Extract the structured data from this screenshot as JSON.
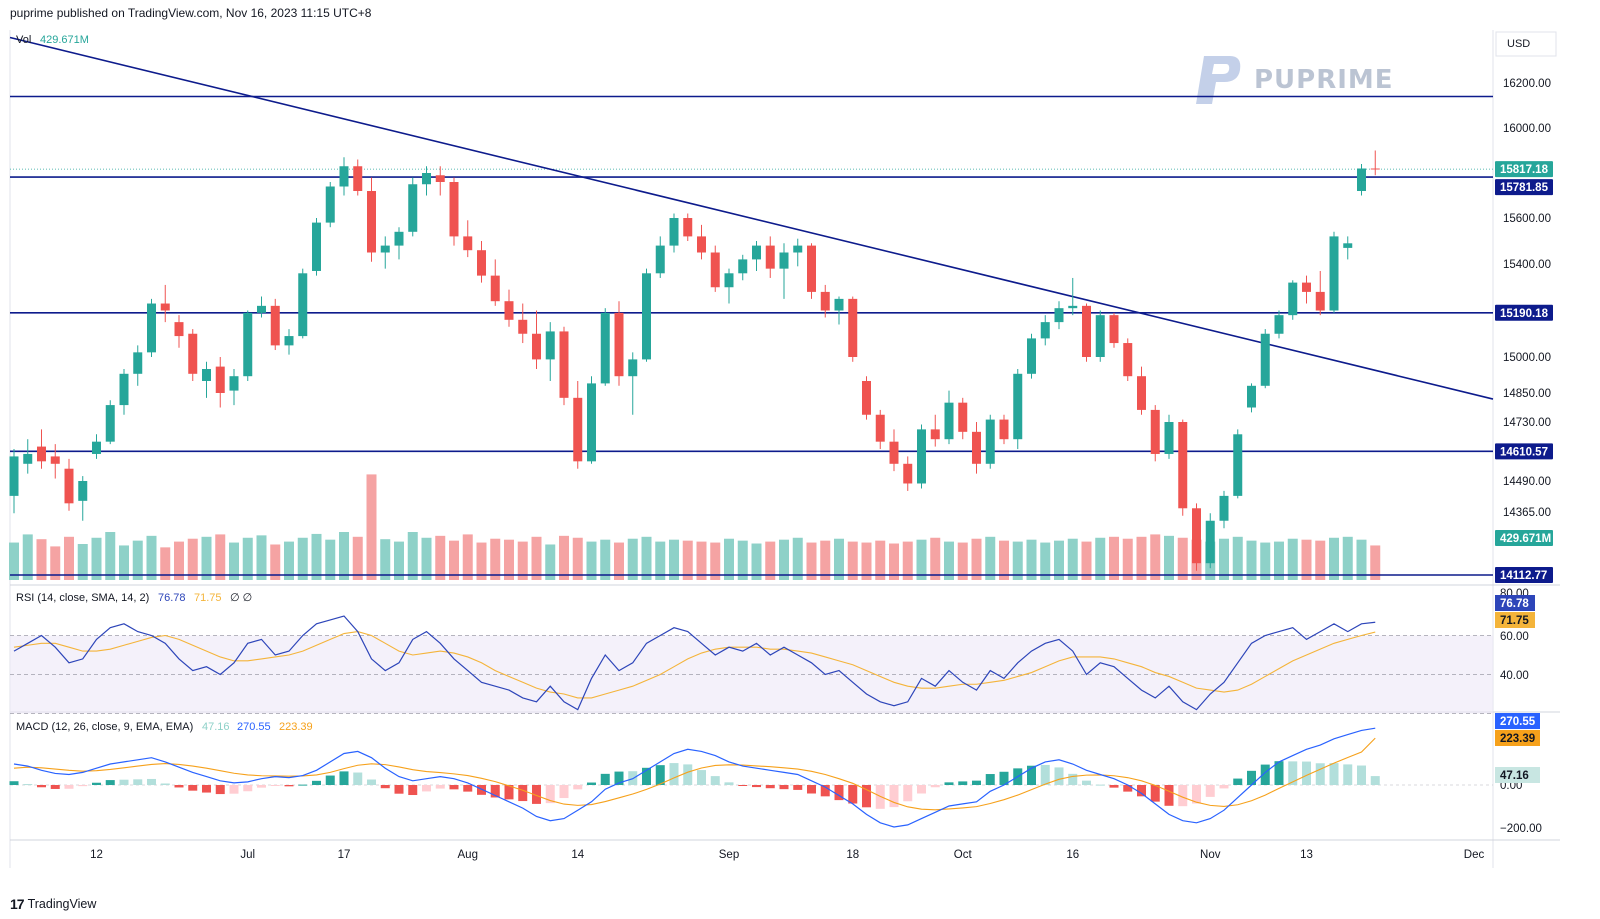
{
  "header": {
    "published": "puprime published on TradingView.com, Nov 16, 2023 11:15 UTC+8"
  },
  "currency": "USD",
  "watermark": {
    "text": "PUPRIME"
  },
  "footer": {
    "brand": "TradingView",
    "logo_glyph": "17"
  },
  "colors": {
    "up": "#26a69a",
    "down": "#ef5350",
    "vol_up": "#8ed1c8",
    "vol_down": "#f5a3a3",
    "line": "#0d1b8c",
    "rsi": "#2d45b9",
    "rsi_ma": "#f4b43a",
    "macd": "#2962ff",
    "signal": "#f6a11b",
    "hist_up": "#26a69a",
    "hist_down": "#ef5350"
  },
  "price_panel": {
    "vol_legend": {
      "label": "Vol",
      "value": "429.671M"
    },
    "y_ticks": [
      "16200.00",
      "16000.00",
      "15600.00",
      "15400.00",
      "15000.00",
      "14850.00",
      "14730.00",
      "14490.00",
      "14365.00"
    ],
    "y_tick_values": [
      16200,
      16000,
      15600,
      15400,
      15000,
      14850,
      14730,
      14490,
      14365
    ],
    "badges": [
      {
        "text": "15817.18",
        "value": 15817.18,
        "kind": "last"
      },
      {
        "text": "15781.85",
        "value": 15781.85,
        "kind": "level"
      },
      {
        "text": "15190.18",
        "value": 15190.18,
        "kind": "level"
      },
      {
        "text": "14610.57",
        "value": 14610.57,
        "kind": "level"
      },
      {
        "text": "14112.77",
        "value": 14112.77,
        "kind": "level"
      },
      {
        "text": "429.671M",
        "value": null,
        "kind": "volume"
      }
    ],
    "horizontal_levels": [
      16140,
      15781.85,
      15190.18,
      14610.57,
      14112.77
    ],
    "trendline": {
      "from": {
        "bar": 0,
        "price": 16180
      },
      "to": {
        "bar": 104,
        "price": 14825
      }
    }
  },
  "rsi_panel": {
    "legend": {
      "label": "RSI (14, close, SMA, 14, 2)",
      "rsi": "76.78",
      "ma": "71.75",
      "extra": "∅ ∅"
    },
    "y_ticks": [
      "80.00",
      "60.00",
      "40.00"
    ],
    "badges": [
      {
        "text": "76.78",
        "kind": "rsi"
      },
      {
        "text": "71.75",
        "kind": "ma"
      }
    ]
  },
  "macd_panel": {
    "legend": {
      "label": "MACD (12, 26, close, 9, EMA, EMA)",
      "hist": "47.16",
      "macd": "270.55",
      "signal": "223.39"
    },
    "y_ticks": [
      "0.00",
      "−200.00"
    ],
    "badges": [
      {
        "text": "270.55",
        "kind": "macd"
      },
      {
        "text": "223.39",
        "kind": "signal"
      },
      {
        "text": "47.16",
        "kind": "hist"
      }
    ]
  },
  "x_axis": {
    "labels": [
      {
        "text": "12",
        "bar": 6
      },
      {
        "text": "Jul",
        "bar": 17
      },
      {
        "text": "17",
        "bar": 24
      },
      {
        "text": "Aug",
        "bar": 33
      },
      {
        "text": "14",
        "bar": 41
      },
      {
        "text": "Sep",
        "bar": 52
      },
      {
        "text": "18",
        "bar": 61
      },
      {
        "text": "Oct",
        "bar": 69
      },
      {
        "text": "16",
        "bar": 77
      },
      {
        "text": "Nov",
        "bar": 87
      },
      {
        "text": "13",
        "bar": 94
      },
      {
        "text": "Dec",
        "bar": 104
      }
    ]
  },
  "chart_data": {
    "type": "candlestick",
    "series_candles": [
      [
        14430,
        14620,
        14360,
        14590
      ],
      [
        14560,
        14660,
        14520,
        14600
      ],
      [
        14630,
        14700,
        14540,
        14570
      ],
      [
        14590,
        14640,
        14500,
        14560
      ],
      [
        14540,
        14580,
        14370,
        14400
      ],
      [
        14410,
        14510,
        14330,
        14490
      ],
      [
        14600,
        14680,
        14580,
        14650
      ],
      [
        14650,
        14820,
        14640,
        14800
      ],
      [
        14800,
        14950,
        14760,
        14930
      ],
      [
        14930,
        15050,
        14880,
        15020
      ],
      [
        15020,
        15250,
        15000,
        15230
      ],
      [
        15230,
        15310,
        15150,
        15200
      ],
      [
        15150,
        15180,
        15040,
        15090
      ],
      [
        15100,
        15120,
        14900,
        14930
      ],
      [
        14900,
        14980,
        14830,
        14950
      ],
      [
        14960,
        15000,
        14790,
        14850
      ],
      [
        14860,
        14950,
        14800,
        14920
      ],
      [
        14920,
        15200,
        14900,
        15190
      ],
      [
        15190,
        15260,
        15170,
        15220
      ],
      [
        15220,
        15250,
        15030,
        15050
      ],
      [
        15050,
        15120,
        15010,
        15090
      ],
      [
        15090,
        15380,
        15080,
        15360
      ],
      [
        15370,
        15600,
        15350,
        15580
      ],
      [
        15580,
        15760,
        15560,
        15740
      ],
      [
        15740,
        15870,
        15700,
        15830
      ],
      [
        15830,
        15860,
        15700,
        15720
      ],
      [
        15720,
        15780,
        15410,
        15450
      ],
      [
        15450,
        15520,
        15380,
        15480
      ],
      [
        15480,
        15560,
        15420,
        15540
      ],
      [
        15540,
        15780,
        15520,
        15750
      ],
      [
        15750,
        15830,
        15700,
        15800
      ],
      [
        15790,
        15830,
        15700,
        15760
      ],
      [
        15760,
        15780,
        15480,
        15520
      ],
      [
        15520,
        15590,
        15430,
        15460
      ],
      [
        15460,
        15500,
        15320,
        15350
      ],
      [
        15350,
        15420,
        15220,
        15240
      ],
      [
        15240,
        15290,
        15130,
        15160
      ],
      [
        15160,
        15230,
        15060,
        15100
      ],
      [
        15100,
        15200,
        14950,
        14990
      ],
      [
        14990,
        15150,
        14900,
        15110
      ],
      [
        15110,
        15130,
        14800,
        14830
      ],
      [
        14830,
        14900,
        14540,
        14570
      ],
      [
        14570,
        14920,
        14560,
        14890
      ],
      [
        14890,
        15210,
        14880,
        15190
      ],
      [
        15190,
        15240,
        14880,
        14920
      ],
      [
        14920,
        15020,
        14760,
        14990
      ],
      [
        14990,
        15380,
        14980,
        15360
      ],
      [
        15360,
        15520,
        15340,
        15480
      ],
      [
        15480,
        15620,
        15450,
        15600
      ],
      [
        15600,
        15620,
        15500,
        15520
      ],
      [
        15520,
        15570,
        15420,
        15450
      ],
      [
        15450,
        15480,
        15280,
        15300
      ],
      [
        15300,
        15380,
        15230,
        15360
      ],
      [
        15360,
        15440,
        15330,
        15420
      ],
      [
        15420,
        15500,
        15370,
        15480
      ],
      [
        15480,
        15520,
        15340,
        15380
      ],
      [
        15380,
        15490,
        15250,
        15450
      ],
      [
        15450,
        15510,
        15390,
        15480
      ],
      [
        15480,
        15490,
        15250,
        15280
      ],
      [
        15280,
        15310,
        15170,
        15200
      ],
      [
        15200,
        15260,
        15140,
        15250
      ],
      [
        15250,
        15260,
        14980,
        15000
      ],
      [
        14900,
        14920,
        14740,
        14760
      ],
      [
        14760,
        14780,
        14620,
        14650
      ],
      [
        14650,
        14700,
        14530,
        14560
      ],
      [
        14560,
        14590,
        14450,
        14480
      ],
      [
        14480,
        14720,
        14460,
        14700
      ],
      [
        14700,
        14760,
        14630,
        14660
      ],
      [
        14660,
        14860,
        14640,
        14810
      ],
      [
        14810,
        14830,
        14660,
        14690
      ],
      [
        14690,
        14730,
        14520,
        14560
      ],
      [
        14560,
        14760,
        14540,
        14740
      ],
      [
        14740,
        14760,
        14640,
        14660
      ],
      [
        14660,
        14950,
        14620,
        14930
      ],
      [
        14930,
        15100,
        14910,
        15080
      ],
      [
        15080,
        15180,
        15050,
        15150
      ],
      [
        15150,
        15240,
        15120,
        15210
      ],
      [
        15210,
        15340,
        15180,
        15220
      ],
      [
        15220,
        15230,
        14980,
        15000
      ],
      [
        15000,
        15200,
        14980,
        15180
      ],
      [
        15180,
        15190,
        15040,
        15060
      ],
      [
        15060,
        15080,
        14900,
        14920
      ],
      [
        14920,
        14960,
        14760,
        14780
      ],
      [
        14780,
        14800,
        14570,
        14600
      ],
      [
        14600,
        14760,
        14580,
        14730
      ],
      [
        14730,
        14740,
        14350,
        14380
      ],
      [
        14380,
        14400,
        14130,
        14160
      ],
      [
        14160,
        14360,
        14140,
        14330
      ],
      [
        14330,
        14450,
        14300,
        14430
      ],
      [
        14430,
        14700,
        14420,
        14680
      ],
      [
        14790,
        14890,
        14770,
        14880
      ],
      [
        14880,
        15120,
        14870,
        15100
      ],
      [
        15100,
        15200,
        15080,
        15180
      ],
      [
        15180,
        15330,
        15160,
        15320
      ],
      [
        15320,
        15350,
        15230,
        15280
      ],
      [
        15280,
        15370,
        15180,
        15200
      ],
      [
        15200,
        15540,
        15190,
        15520
      ],
      [
        15470,
        15520,
        15420,
        15490
      ],
      [
        15720,
        15840,
        15700,
        15820
      ],
      [
        15820,
        15900,
        15790,
        15817.18
      ]
    ],
    "volume": [
      0.78,
      0.95,
      0.85,
      0.7,
      0.9,
      0.75,
      0.88,
      1.0,
      0.72,
      0.82,
      0.92,
      0.68,
      0.8,
      0.86,
      0.9,
      0.95,
      0.78,
      0.88,
      0.93,
      0.74,
      0.8,
      0.88,
      0.96,
      0.84,
      1.0,
      0.9,
      2.2,
      0.85,
      0.8,
      1.0,
      0.88,
      0.92,
      0.82,
      0.95,
      0.78,
      0.86,
      0.84,
      0.8,
      0.9,
      0.74,
      0.92,
      0.88,
      0.8,
      0.84,
      0.78,
      0.86,
      0.9,
      0.8,
      0.84,
      0.82,
      0.8,
      0.78,
      0.86,
      0.82,
      0.76,
      0.8,
      0.84,
      0.88,
      0.78,
      0.82,
      0.86,
      0.8,
      0.78,
      0.82,
      0.76,
      0.8,
      0.84,
      0.88,
      0.8,
      0.78,
      0.86,
      0.9,
      0.82,
      0.8,
      0.84,
      0.78,
      0.82,
      0.86,
      0.8,
      0.88,
      0.9,
      0.86,
      0.9,
      0.95,
      0.92,
      0.88,
      0.84,
      0.8,
      0.86,
      0.9,
      0.82,
      0.78,
      0.8,
      0.86,
      0.84,
      0.82,
      0.88,
      0.9,
      0.84,
      0.72
    ],
    "rsi": [
      62,
      66,
      70,
      64,
      56,
      58,
      68,
      74,
      76,
      72,
      70,
      66,
      58,
      52,
      54,
      50,
      56,
      66,
      68,
      60,
      62,
      70,
      76,
      78,
      80,
      72,
      58,
      52,
      56,
      68,
      72,
      66,
      58,
      52,
      46,
      44,
      42,
      38,
      36,
      44,
      36,
      32,
      48,
      60,
      52,
      56,
      66,
      70,
      74,
      72,
      66,
      60,
      64,
      62,
      66,
      60,
      64,
      60,
      56,
      50,
      52,
      46,
      40,
      36,
      34,
      36,
      48,
      44,
      52,
      46,
      42,
      52,
      48,
      56,
      62,
      66,
      68,
      62,
      50,
      56,
      54,
      48,
      42,
      38,
      44,
      36,
      32,
      40,
      46,
      56,
      66,
      70,
      72,
      74,
      68,
      72,
      76,
      72,
      76,
      76.78
    ],
    "rsi_ma": [
      64,
      65,
      66,
      66,
      64,
      62,
      62,
      63,
      65,
      67,
      69,
      70,
      68,
      65,
      62,
      59,
      57,
      57,
      58,
      59,
      60,
      62,
      65,
      68,
      71,
      72,
      70,
      66,
      62,
      60,
      61,
      62,
      61,
      59,
      56,
      52,
      49,
      46,
      43,
      41,
      40,
      38,
      38,
      40,
      42,
      44,
      47,
      50,
      54,
      58,
      61,
      63,
      64,
      64,
      64,
      63,
      63,
      62,
      61,
      59,
      57,
      55,
      52,
      49,
      46,
      44,
      43,
      43,
      44,
      45,
      45,
      46,
      47,
      49,
      51,
      54,
      57,
      59,
      59,
      59,
      58,
      56,
      54,
      51,
      49,
      46,
      43,
      42,
      41,
      42,
      45,
      49,
      53,
      57,
      60,
      63,
      66,
      68,
      70,
      71.75
    ],
    "macd": [
      100,
      90,
      70,
      55,
      50,
      60,
      80,
      100,
      110,
      120,
      130,
      110,
      85,
      60,
      40,
      20,
      10,
      15,
      30,
      40,
      35,
      45,
      70,
      110,
      150,
      160,
      130,
      80,
      40,
      20,
      30,
      40,
      30,
      10,
      -20,
      -50,
      -80,
      -110,
      -150,
      -170,
      -160,
      -120,
      -80,
      -20,
      10,
      30,
      70,
      110,
      150,
      170,
      160,
      140,
      110,
      90,
      80,
      70,
      60,
      50,
      20,
      -10,
      -50,
      -90,
      -140,
      -180,
      -200,
      -190,
      -160,
      -130,
      -100,
      -90,
      -80,
      -30,
      0,
      40,
      80,
      110,
      120,
      100,
      70,
      50,
      30,
      0,
      -40,
      -90,
      -140,
      -170,
      -180,
      -160,
      -120,
      -60,
      0,
      60,
      110,
      140,
      170,
      190,
      220,
      240,
      260,
      270.55
    ],
    "signal": [
      80,
      85,
      82,
      76,
      70,
      66,
      68,
      74,
      82,
      90,
      98,
      102,
      98,
      90,
      80,
      68,
      56,
      48,
      44,
      43,
      42,
      43,
      48,
      60,
      78,
      94,
      101,
      97,
      86,
      73,
      64,
      59,
      53,
      45,
      32,
      16,
      -4,
      -25,
      -50,
      -74,
      -91,
      -97,
      -93,
      -79,
      -61,
      -43,
      -21,
      5,
      34,
      61,
      81,
      93,
      96,
      95,
      91,
      87,
      82,
      76,
      65,
      50,
      30,
      8,
      -22,
      -54,
      -83,
      -104,
      -115,
      -118,
      -114,
      -109,
      -103,
      -88,
      -70,
      -48,
      -22,
      4,
      27,
      41,
      47,
      48,
      44,
      35,
      20,
      -2,
      -30,
      -58,
      -82,
      -97,
      -102,
      -94,
      -75,
      -48,
      -16,
      15,
      46,
      75,
      104,
      131,
      157,
      223.39
    ],
    "hist_scale_note": ""
  }
}
